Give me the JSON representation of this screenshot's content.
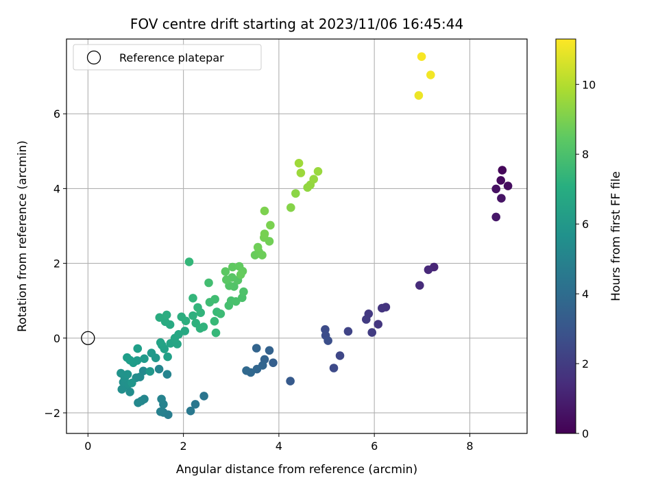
{
  "chart_data": {
    "type": "scatter",
    "title": "FOV centre drift starting at 2023/11/06 16:45:44",
    "xlabel": "Angular distance from reference (arcmin)",
    "ylabel": "Rotation from reference (arcmin)",
    "xlim": [
      -0.45,
      9.2
    ],
    "ylim": [
      -2.55,
      8.0
    ],
    "xticks": [
      0,
      2,
      4,
      6,
      8
    ],
    "yticks": [
      -2,
      0,
      2,
      4,
      6
    ],
    "xtick_labels": [
      "0",
      "2",
      "4",
      "6",
      "8"
    ],
    "ytick_labels": [
      "−2",
      "0",
      "2",
      "4",
      "6"
    ],
    "grid": true,
    "legend": {
      "position": "top-left",
      "entries": [
        "Reference platepar"
      ]
    },
    "reference_point": {
      "x": 0,
      "y": 0
    },
    "colorbar": {
      "label": "Hours from first FF file",
      "colormap": "viridis",
      "range": [
        0,
        11.3
      ],
      "ticks": [
        0,
        2,
        4,
        6,
        8,
        10
      ],
      "tick_labels": [
        "0",
        "2",
        "4",
        "6",
        "8",
        "10"
      ]
    },
    "points": [
      {
        "x": 8.68,
        "y": 4.49,
        "c": 0.2
      },
      {
        "x": 8.65,
        "y": 4.22,
        "c": 0.3
      },
      {
        "x": 8.8,
        "y": 4.07,
        "c": 0.4
      },
      {
        "x": 8.55,
        "y": 3.99,
        "c": 0.5
      },
      {
        "x": 8.66,
        "y": 3.74,
        "c": 0.6
      },
      {
        "x": 8.55,
        "y": 3.24,
        "c": 0.7
      },
      {
        "x": 7.25,
        "y": 1.9,
        "c": 1.2
      },
      {
        "x": 7.13,
        "y": 1.83,
        "c": 1.3
      },
      {
        "x": 6.95,
        "y": 1.41,
        "c": 1.4
      },
      {
        "x": 6.24,
        "y": 0.83,
        "c": 1.7
      },
      {
        "x": 6.16,
        "y": 0.8,
        "c": 1.75
      },
      {
        "x": 6.08,
        "y": 0.37,
        "c": 1.8
      },
      {
        "x": 5.88,
        "y": 0.65,
        "c": 1.9
      },
      {
        "x": 5.83,
        "y": 0.5,
        "c": 1.95
      },
      {
        "x": 5.95,
        "y": 0.15,
        "c": 2.0
      },
      {
        "x": 5.45,
        "y": 0.18,
        "c": 2.3
      },
      {
        "x": 5.28,
        "y": -0.47,
        "c": 2.4
      },
      {
        "x": 5.15,
        "y": -0.8,
        "c": 2.5
      },
      {
        "x": 4.97,
        "y": 0.23,
        "c": 2.6
      },
      {
        "x": 4.98,
        "y": 0.07,
        "c": 2.65
      },
      {
        "x": 5.03,
        "y": -0.07,
        "c": 2.7
      },
      {
        "x": 4.24,
        "y": -1.15,
        "c": 3.2
      },
      {
        "x": 3.88,
        "y": -0.66,
        "c": 3.4
      },
      {
        "x": 3.8,
        "y": -0.33,
        "c": 3.5
      },
      {
        "x": 3.7,
        "y": -0.57,
        "c": 3.55
      },
      {
        "x": 3.53,
        "y": -0.27,
        "c": 3.6
      },
      {
        "x": 3.66,
        "y": -0.73,
        "c": 3.65
      },
      {
        "x": 3.54,
        "y": -0.83,
        "c": 3.7
      },
      {
        "x": 3.41,
        "y": -0.92,
        "c": 3.75
      },
      {
        "x": 3.32,
        "y": -0.87,
        "c": 3.8
      },
      {
        "x": 2.43,
        "y": -1.55,
        "c": 4.4
      },
      {
        "x": 2.25,
        "y": -1.77,
        "c": 4.5
      },
      {
        "x": 2.15,
        "y": -1.95,
        "c": 4.55
      },
      {
        "x": 1.68,
        "y": -2.05,
        "c": 4.8
      },
      {
        "x": 1.58,
        "y": -1.99,
        "c": 4.9
      },
      {
        "x": 1.52,
        "y": -1.97,
        "c": 4.95
      },
      {
        "x": 1.58,
        "y": -1.77,
        "c": 5.0
      },
      {
        "x": 1.54,
        "y": -1.63,
        "c": 5.05
      },
      {
        "x": 1.66,
        "y": -0.97,
        "c": 5.1
      },
      {
        "x": 1.49,
        "y": -0.83,
        "c": 5.15
      },
      {
        "x": 1.18,
        "y": -1.63,
        "c": 5.2
      },
      {
        "x": 1.12,
        "y": -1.68,
        "c": 5.25
      },
      {
        "x": 1.05,
        "y": -1.73,
        "c": 5.3
      },
      {
        "x": 1.16,
        "y": -0.88,
        "c": 5.35
      },
      {
        "x": 1.09,
        "y": -1.04,
        "c": 5.4
      },
      {
        "x": 1.01,
        "y": -1.06,
        "c": 5.45
      },
      {
        "x": 0.88,
        "y": -1.44,
        "c": 5.5
      },
      {
        "x": 0.79,
        "y": -1.27,
        "c": 5.55
      },
      {
        "x": 0.71,
        "y": -1.37,
        "c": 5.6
      },
      {
        "x": 0.74,
        "y": -1.18,
        "c": 5.65
      },
      {
        "x": 0.85,
        "y": -1.23,
        "c": 5.7
      },
      {
        "x": 0.77,
        "y": -1.06,
        "c": 5.75
      },
      {
        "x": 0.69,
        "y": -0.94,
        "c": 5.8
      },
      {
        "x": 0.83,
        "y": -0.97,
        "c": 5.85
      },
      {
        "x": 0.92,
        "y": -1.2,
        "c": 5.9
      },
      {
        "x": 1.3,
        "y": -0.89,
        "c": 5.95
      },
      {
        "x": 1.42,
        "y": -0.53,
        "c": 6.0
      },
      {
        "x": 1.33,
        "y": -0.4,
        "c": 6.05
      },
      {
        "x": 1.18,
        "y": -0.55,
        "c": 6.1
      },
      {
        "x": 1.03,
        "y": -0.6,
        "c": 6.15
      },
      {
        "x": 0.95,
        "y": -0.66,
        "c": 6.2
      },
      {
        "x": 0.88,
        "y": -0.59,
        "c": 6.25
      },
      {
        "x": 0.82,
        "y": -0.52,
        "c": 6.3
      },
      {
        "x": 1.04,
        "y": -0.28,
        "c": 6.35
      },
      {
        "x": 1.67,
        "y": -0.5,
        "c": 6.4
      },
      {
        "x": 1.6,
        "y": -0.29,
        "c": 6.45
      },
      {
        "x": 1.55,
        "y": -0.19,
        "c": 6.5
      },
      {
        "x": 1.52,
        "y": -0.12,
        "c": 6.55
      },
      {
        "x": 1.73,
        "y": -0.14,
        "c": 6.6
      },
      {
        "x": 1.87,
        "y": -0.16,
        "c": 6.65
      },
      {
        "x": 1.82,
        "y": 0.0,
        "c": 6.7
      },
      {
        "x": 1.9,
        "y": 0.1,
        "c": 6.75
      },
      {
        "x": 2.03,
        "y": 0.19,
        "c": 6.8
      },
      {
        "x": 1.72,
        "y": 0.36,
        "c": 6.85
      },
      {
        "x": 1.62,
        "y": 0.44,
        "c": 6.9
      },
      {
        "x": 1.5,
        "y": 0.55,
        "c": 6.95
      },
      {
        "x": 1.65,
        "y": 0.62,
        "c": 7.0
      },
      {
        "x": 1.96,
        "y": 0.57,
        "c": 7.05
      },
      {
        "x": 2.05,
        "y": 0.46,
        "c": 7.1
      },
      {
        "x": 2.2,
        "y": 0.6,
        "c": 7.15
      },
      {
        "x": 2.26,
        "y": 0.4,
        "c": 7.2
      },
      {
        "x": 2.35,
        "y": 0.26,
        "c": 7.25
      },
      {
        "x": 2.42,
        "y": 0.3,
        "c": 7.3
      },
      {
        "x": 2.36,
        "y": 0.68,
        "c": 7.35
      },
      {
        "x": 2.3,
        "y": 0.82,
        "c": 7.4
      },
      {
        "x": 2.2,
        "y": 1.07,
        "c": 7.45
      },
      {
        "x": 2.12,
        "y": 2.04,
        "c": 7.5
      },
      {
        "x": 2.68,
        "y": 0.14,
        "c": 7.55
      },
      {
        "x": 2.65,
        "y": 0.45,
        "c": 7.6
      },
      {
        "x": 2.7,
        "y": 0.7,
        "c": 7.65
      },
      {
        "x": 2.78,
        "y": 0.65,
        "c": 7.7
      },
      {
        "x": 2.55,
        "y": 0.96,
        "c": 7.75
      },
      {
        "x": 2.66,
        "y": 1.04,
        "c": 7.8
      },
      {
        "x": 2.53,
        "y": 1.48,
        "c": 7.85
      },
      {
        "x": 2.95,
        "y": 0.87,
        "c": 7.9
      },
      {
        "x": 3.0,
        "y": 1.0,
        "c": 7.95
      },
      {
        "x": 3.1,
        "y": 0.98,
        "c": 8.0
      },
      {
        "x": 3.23,
        "y": 1.08,
        "c": 8.05
      },
      {
        "x": 3.26,
        "y": 1.24,
        "c": 8.1
      },
      {
        "x": 3.06,
        "y": 1.38,
        "c": 8.15
      },
      {
        "x": 2.96,
        "y": 1.4,
        "c": 8.2
      },
      {
        "x": 3.14,
        "y": 1.55,
        "c": 8.25
      },
      {
        "x": 3.02,
        "y": 1.62,
        "c": 8.3
      },
      {
        "x": 2.9,
        "y": 1.56,
        "c": 8.35
      },
      {
        "x": 2.88,
        "y": 1.78,
        "c": 8.4
      },
      {
        "x": 3.03,
        "y": 1.9,
        "c": 8.45
      },
      {
        "x": 3.17,
        "y": 1.92,
        "c": 8.5
      },
      {
        "x": 3.24,
        "y": 1.79,
        "c": 8.55
      },
      {
        "x": 3.2,
        "y": 1.7,
        "c": 8.6
      },
      {
        "x": 3.5,
        "y": 2.22,
        "c": 8.65
      },
      {
        "x": 3.58,
        "y": 2.31,
        "c": 8.7
      },
      {
        "x": 3.65,
        "y": 2.22,
        "c": 8.75
      },
      {
        "x": 3.56,
        "y": 2.43,
        "c": 8.8
      },
      {
        "x": 3.8,
        "y": 2.59,
        "c": 8.85
      },
      {
        "x": 3.69,
        "y": 2.69,
        "c": 8.9
      },
      {
        "x": 3.7,
        "y": 2.79,
        "c": 8.95
      },
      {
        "x": 3.82,
        "y": 3.02,
        "c": 9.0
      },
      {
        "x": 3.7,
        "y": 3.4,
        "c": 9.05
      },
      {
        "x": 4.25,
        "y": 3.49,
        "c": 9.2
      },
      {
        "x": 4.35,
        "y": 3.87,
        "c": 9.3
      },
      {
        "x": 4.6,
        "y": 4.03,
        "c": 9.4
      },
      {
        "x": 4.66,
        "y": 4.1,
        "c": 9.45
      },
      {
        "x": 4.73,
        "y": 4.25,
        "c": 9.5
      },
      {
        "x": 4.82,
        "y": 4.46,
        "c": 9.55
      },
      {
        "x": 4.46,
        "y": 4.42,
        "c": 9.6
      },
      {
        "x": 4.42,
        "y": 4.68,
        "c": 9.65
      },
      {
        "x": 6.93,
        "y": 6.49,
        "c": 11.0
      },
      {
        "x": 7.18,
        "y": 7.04,
        "c": 11.1
      },
      {
        "x": 6.99,
        "y": 7.53,
        "c": 11.2
      }
    ]
  }
}
